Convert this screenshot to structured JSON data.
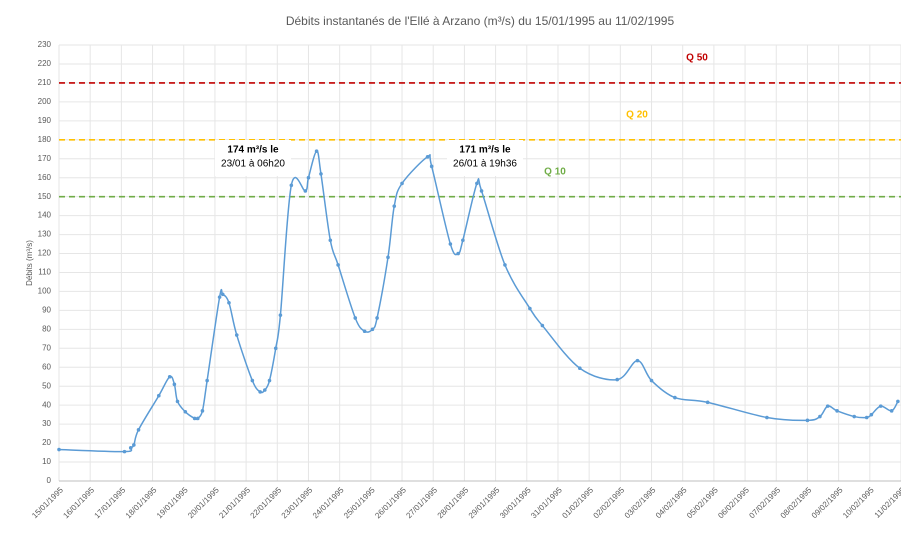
{
  "chart_data": {
    "type": "line",
    "title": "Débits instantanés de l'Ellé à Arzano (m³/s) du 15/01/1995 au 11/02/1995",
    "ylabel": "Débits (m³/s)",
    "xlim": [
      0,
      27
    ],
    "ylim": [
      0,
      230
    ],
    "yticks": [
      0,
      10,
      20,
      30,
      40,
      50,
      60,
      70,
      80,
      90,
      100,
      110,
      120,
      130,
      140,
      150,
      160,
      170,
      180,
      190,
      200,
      210,
      220,
      230
    ],
    "xticks": [
      {
        "value": 0,
        "label": "15/01/1995"
      },
      {
        "value": 1,
        "label": "16/01/1995"
      },
      {
        "value": 2,
        "label": "17/01/1995"
      },
      {
        "value": 3,
        "label": "18/01/1995"
      },
      {
        "value": 4,
        "label": "19/01/1995"
      },
      {
        "value": 5,
        "label": "20/01/1995"
      },
      {
        "value": 6,
        "label": "21/01/1995"
      },
      {
        "value": 7,
        "label": "22/01/1995"
      },
      {
        "value": 8,
        "label": "23/01/1995"
      },
      {
        "value": 9,
        "label": "24/01/1995"
      },
      {
        "value": 10,
        "label": "25/01/1995"
      },
      {
        "value": 11,
        "label": "26/01/1995"
      },
      {
        "value": 12,
        "label": "27/01/1995"
      },
      {
        "value": 13,
        "label": "28/01/1995"
      },
      {
        "value": 14,
        "label": "29/01/1995"
      },
      {
        "value": 15,
        "label": "30/01/1995"
      },
      {
        "value": 16,
        "label": "31/01/1995"
      },
      {
        "value": 17,
        "label": "01/02/1995"
      },
      {
        "value": 18,
        "label": "02/02/1995"
      },
      {
        "value": 19,
        "label": "03/02/1995"
      },
      {
        "value": 20,
        "label": "04/02/1995"
      },
      {
        "value": 21,
        "label": "05/02/1995"
      },
      {
        "value": 22,
        "label": "06/02/1995"
      },
      {
        "value": 23,
        "label": "07/02/1995"
      },
      {
        "value": 24,
        "label": "08/02/1995"
      },
      {
        "value": 25,
        "label": "09/02/1995"
      },
      {
        "value": 26,
        "label": "10/02/1995"
      },
      {
        "value": 27,
        "label": "11/02/1995"
      }
    ],
    "grid": true,
    "series": [
      {
        "name": "Débits",
        "color": "#5b9bd5",
        "x": [
          0,
          2.1,
          2.3,
          2.4,
          2.55,
          3.2,
          3.55,
          3.7,
          3.8,
          4.05,
          4.35,
          4.45,
          4.6,
          4.75,
          5.15,
          5.25,
          5.45,
          5.7,
          6.2,
          6.45,
          6.6,
          6.75,
          6.95,
          7.1,
          7.45,
          7.9,
          8.0,
          8.26,
          8.4,
          8.7,
          8.95,
          9.5,
          9.8,
          10.05,
          10.2,
          10.55,
          10.75,
          11.0,
          11.82,
          11.95,
          12.55,
          12.8,
          12.95,
          13.4,
          13.55,
          14.3,
          15.1,
          15.5,
          16.7,
          17.9,
          18.55,
          19.0,
          19.75,
          20.8,
          22.7,
          24.0,
          24.4,
          24.65,
          24.95,
          25.5,
          25.9,
          26.05,
          26.35,
          26.7,
          26.9
        ],
        "values": [
          16.6,
          15.5,
          17.5,
          19,
          27,
          45,
          55,
          51,
          42,
          36.5,
          33,
          33,
          37,
          53,
          97,
          98.5,
          94,
          77,
          53,
          47,
          48,
          53,
          70,
          87.5,
          156,
          153,
          160,
          174,
          162,
          127,
          114,
          86,
          79,
          80,
          86,
          118,
          145,
          157,
          171,
          166,
          125,
          120,
          127,
          157,
          153,
          114,
          91,
          82,
          59.5,
          53.5,
          63.5,
          53,
          44,
          41.5,
          33.5,
          32,
          34,
          39.5,
          37,
          34,
          33.5,
          35,
          39.5,
          37,
          42
        ]
      }
    ],
    "reference_lines": [
      {
        "name": "Q 50",
        "value": 210,
        "color": "#c00000"
      },
      {
        "name": "Q 20",
        "value": 180,
        "color": "#ffc000"
      },
      {
        "name": "Q 10",
        "value": 150,
        "color": "#70ad47"
      }
    ],
    "annotations": [
      {
        "lines": [
          "174 m³/s le",
          "23/01 à 06h20"
        ]
      },
      {
        "lines": [
          "171 m³/s le",
          "26/01 à 19h36"
        ]
      }
    ]
  }
}
